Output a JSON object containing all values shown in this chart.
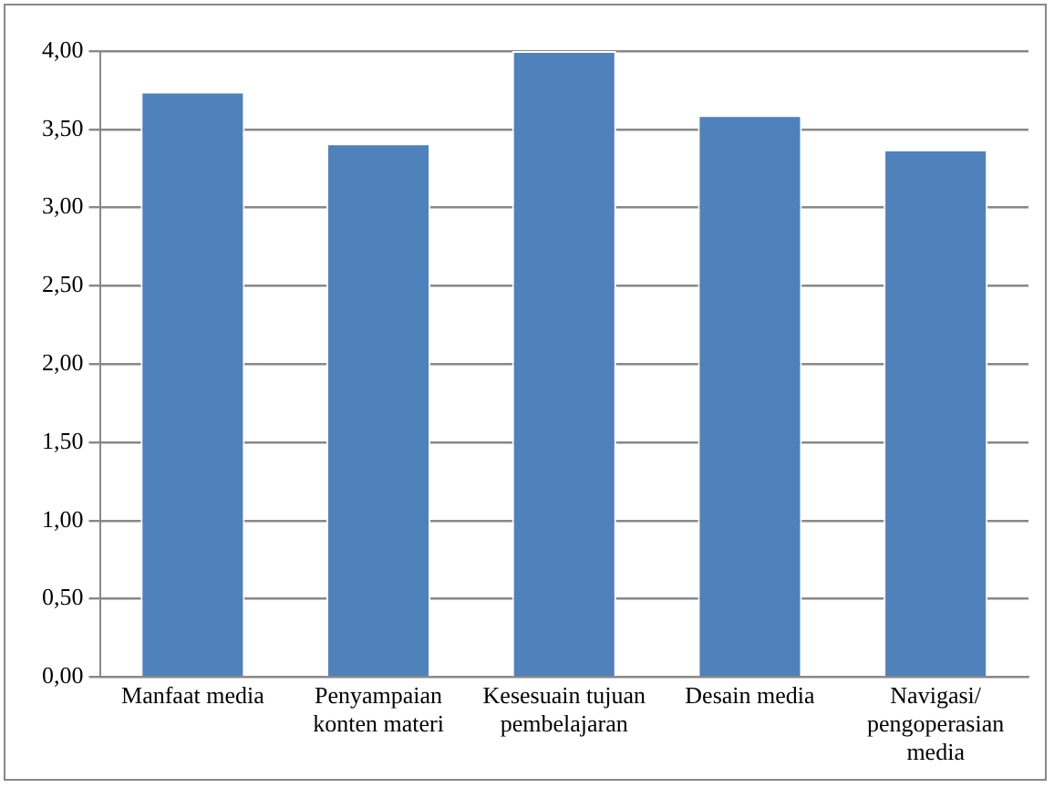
{
  "chart_data": {
    "type": "bar",
    "categories": [
      "Manfaat media",
      "Penyampaian konten materi",
      "Kesesuain tujuan pembelajaran",
      "Desain media",
      "Navigasi/ pengoperasian media"
    ],
    "values": [
      3.74,
      3.41,
      4.0,
      3.59,
      3.37
    ],
    "color": "#4f81bd",
    "ylim": [
      0,
      4
    ],
    "yticks": [
      {
        "value": 0,
        "label": "0,00"
      },
      {
        "value": 0.5,
        "label": "0,50"
      },
      {
        "value": 1,
        "label": "1,00"
      },
      {
        "value": 1.5,
        "label": "1,50"
      },
      {
        "value": 2,
        "label": "2,00"
      },
      {
        "value": 2.5,
        "label": "2,50"
      },
      {
        "value": 3,
        "label": "3,00"
      },
      {
        "value": 3.5,
        "label": "3,50"
      },
      {
        "value": 4,
        "label": "4,00"
      }
    ],
    "grid": "y"
  }
}
